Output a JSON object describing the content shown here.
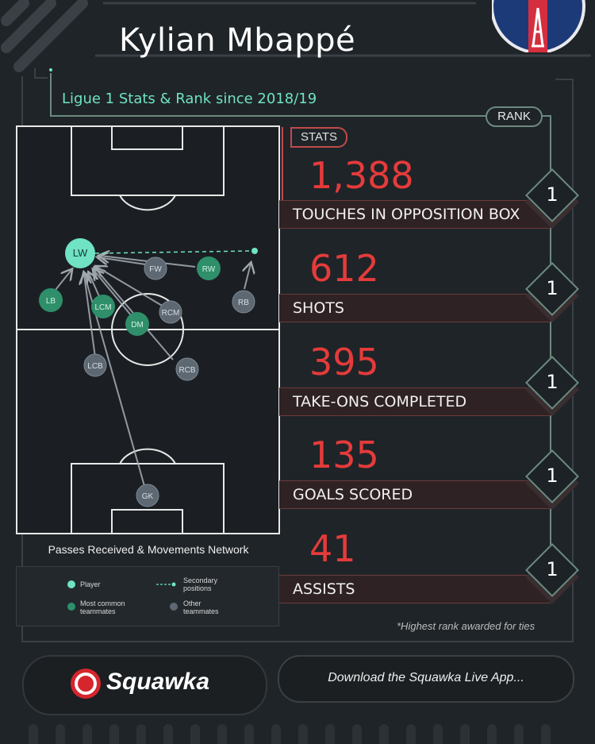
{
  "header": {
    "player_name": "Kylian Mbappé",
    "subtitle": "Ligue 1 Stats & Rank since 2018/19"
  },
  "columns": {
    "stats_label": "STATS",
    "rank_label": "RANK"
  },
  "stats": [
    {
      "value": "1,388",
      "label": "TOUCHES IN OPPOSITION BOX",
      "rank": "1"
    },
    {
      "value": "612",
      "label": "SHOTS",
      "rank": "1"
    },
    {
      "value": "395",
      "label": "TAKE-ONS COMPLETED",
      "rank": "1"
    },
    {
      "value": "135",
      "label": "GOALS SCORED",
      "rank": "1"
    },
    {
      "value": "41",
      "label": "ASSISTS",
      "rank": "1"
    }
  ],
  "pitch": {
    "caption": "Passes Received & Movements Network",
    "positions": [
      "LW",
      "FW",
      "RW",
      "LB",
      "LCM",
      "RCM",
      "RB",
      "DM",
      "LCB",
      "RCB",
      "GK"
    ],
    "legend": {
      "player": "Player",
      "secondary": "Secondary positions",
      "common": "Most common teammates",
      "other": "Other teammates"
    }
  },
  "footnote": "*Highest rank awarded for ties",
  "footer": {
    "brand": "Squawka",
    "cta": "Download the Squawka Live App..."
  },
  "colors": {
    "background": "#1f2428",
    "accent_teal": "#6fe3c4",
    "stat_red": "#e53b3b",
    "common_green": "#2e8f6a",
    "other_grey": "#5d6873"
  }
}
